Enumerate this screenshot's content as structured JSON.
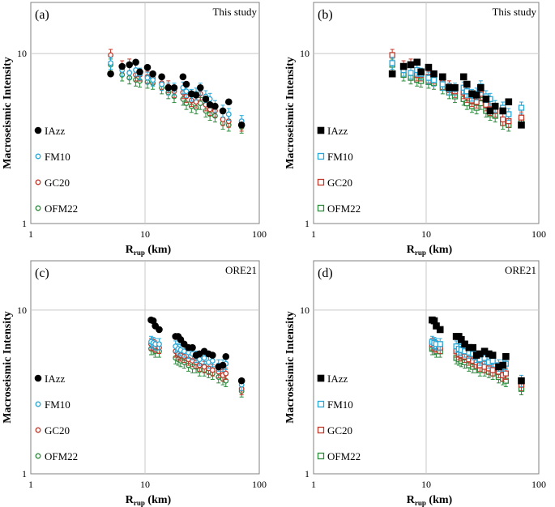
{
  "figure": {
    "description_free": true
  },
  "colors": {
    "IAzz": "#000000",
    "FM10": "#2aa7d6",
    "GC20": "#c0392b",
    "OFM22": "#2e8b3e",
    "grid": "#c8c8c8",
    "axis": "#808080"
  },
  "chart_data": [
    {
      "panel_label": "(a)",
      "source_label": "This study",
      "type": "scatter",
      "marker": "circle",
      "xlabel_main": "R",
      "xlabel_sub": "rup",
      "xlabel_unit": " (km)",
      "ylabel": "Macroseismic Intensity",
      "xscale": "log",
      "yscale": "log",
      "xlim": [
        1,
        100
      ],
      "ylim": [
        1,
        20
      ],
      "xticks": [
        1,
        10,
        100
      ],
      "xtick_labels": [
        "1",
        "10",
        "100"
      ],
      "yticks": [
        1,
        10
      ],
      "ytick_labels": [
        "1",
        "10"
      ],
      "legend": [
        "IAzz",
        "FM10",
        "GC20",
        "OFM22"
      ],
      "x": [
        5.0,
        6.3,
        7.3,
        8.3,
        9.0,
        10.5,
        11.7,
        14.0,
        16.0,
        18.0,
        21.5,
        23.0,
        25.5,
        28.0,
        30.5,
        34.0,
        37.0,
        41.0,
        48.0,
        54.0,
        70.0
      ],
      "series": [
        {
          "name": "IAzz",
          "values": [
            7.6,
            8.4,
            8.6,
            8.9,
            7.8,
            8.3,
            7.6,
            7.3,
            6.3,
            6.3,
            7.3,
            6.6,
            5.8,
            5.7,
            6.3,
            5.4,
            5.0,
            4.9,
            4.6,
            5.2,
            3.8
          ]
        },
        {
          "name": "FM10",
          "values": [
            8.8,
            8.0,
            7.7,
            8.0,
            7.6,
            7.2,
            7.0,
            6.6,
            6.2,
            6.2,
            6.3,
            6.0,
            5.7,
            5.8,
            6.2,
            5.6,
            5.4,
            4.9,
            4.6,
            4.4,
            4.0
          ]
        },
        {
          "name": "GC20",
          "values": [
            9.8,
            8.4,
            8.6,
            7.5,
            7.5,
            7.3,
            7.2,
            6.7,
            6.4,
            6.0,
            5.9,
            5.6,
            5.3,
            5.2,
            5.8,
            5.0,
            4.7,
            4.6,
            4.1,
            4.0,
            3.8
          ]
        },
        {
          "name": "OFM22",
          "values": [
            8.6,
            7.5,
            7.2,
            7.0,
            6.9,
            6.8,
            6.7,
            6.3,
            5.9,
            5.6,
            5.4,
            5.1,
            4.9,
            4.8,
            5.1,
            4.6,
            4.4,
            4.3,
            3.9,
            3.8,
            3.7
          ]
        }
      ]
    },
    {
      "panel_label": "(b)",
      "source_label": "This study",
      "type": "scatter",
      "marker": "square",
      "xlabel_main": "R",
      "xlabel_sub": "rup",
      "xlabel_unit": " (km)",
      "ylabel": "Macroseismic Intensity",
      "xscale": "log",
      "yscale": "log",
      "xlim": [
        1,
        100
      ],
      "ylim": [
        1,
        20
      ],
      "xticks": [
        1,
        10,
        100
      ],
      "xtick_labels": [
        "1",
        "10",
        "100"
      ],
      "yticks": [
        1,
        10
      ],
      "ytick_labels": [
        "1",
        "10"
      ],
      "legend": [
        "IAzz",
        "FM10",
        "GC20",
        "OFM22"
      ],
      "x": [
        5.0,
        6.3,
        7.3,
        8.3,
        9.0,
        10.5,
        11.7,
        14.0,
        16.0,
        18.0,
        21.5,
        23.0,
        25.5,
        28.0,
        30.5,
        34.0,
        37.0,
        41.0,
        48.0,
        54.0,
        70.0
      ],
      "series": [
        {
          "name": "IAzz",
          "values": [
            7.6,
            8.4,
            8.6,
            8.9,
            7.8,
            8.3,
            7.6,
            7.3,
            6.3,
            6.3,
            7.3,
            6.6,
            5.8,
            5.7,
            6.3,
            5.4,
            4.6,
            4.9,
            4.6,
            5.2,
            3.8
          ]
        },
        {
          "name": "FM10",
          "values": [
            8.8,
            8.0,
            7.7,
            8.0,
            7.6,
            7.2,
            7.0,
            6.6,
            6.2,
            6.2,
            6.3,
            6.0,
            5.7,
            5.8,
            6.4,
            5.6,
            5.4,
            4.9,
            4.8,
            4.4,
            4.8
          ]
        },
        {
          "name": "GC20",
          "values": [
            9.8,
            8.4,
            8.6,
            7.5,
            7.5,
            7.3,
            7.2,
            6.7,
            6.4,
            6.0,
            5.9,
            5.6,
            5.3,
            5.2,
            5.8,
            5.0,
            4.7,
            4.6,
            4.1,
            4.0,
            4.2
          ]
        },
        {
          "name": "OFM22",
          "values": [
            8.6,
            7.5,
            7.2,
            7.0,
            6.9,
            6.8,
            6.7,
            6.3,
            5.9,
            5.6,
            5.4,
            5.1,
            4.9,
            4.8,
            5.1,
            4.6,
            4.4,
            4.3,
            3.9,
            3.8,
            4.0
          ]
        }
      ]
    },
    {
      "panel_label": "(c)",
      "source_label": "ORE21",
      "type": "scatter",
      "marker": "circle",
      "xlabel_main": "R",
      "xlabel_sub": "rup",
      "xlabel_unit": " (km)",
      "ylabel": "Macroseismic Intensity",
      "xscale": "log",
      "yscale": "log",
      "xlim": [
        1,
        100
      ],
      "ylim": [
        1,
        20
      ],
      "xticks": [
        1,
        10,
        100
      ],
      "xtick_labels": [
        "1",
        "10",
        "100"
      ],
      "yticks": [
        1,
        10
      ],
      "ytick_labels": [
        "1",
        "10"
      ],
      "legend": [
        "IAzz",
        "FM10",
        "GC20",
        "OFM22"
      ],
      "x": [
        11.3,
        11.8,
        12.3,
        13.3,
        18.5,
        19.5,
        20.5,
        22.0,
        24.0,
        26.0,
        28.0,
        30.0,
        33.0,
        36.0,
        39.0,
        44.0,
        48.0,
        51.0,
        70.0
      ],
      "series": [
        {
          "name": "IAzz",
          "values": [
            8.7,
            8.6,
            8.0,
            7.6,
            6.9,
            6.9,
            6.6,
            6.2,
            5.9,
            5.9,
            5.3,
            5.4,
            5.6,
            5.4,
            5.3,
            4.5,
            4.6,
            5.2,
            3.7
          ]
        },
        {
          "name": "FM10",
          "values": [
            6.4,
            6.3,
            6.2,
            6.2,
            6.0,
            5.8,
            5.7,
            5.6,
            5.5,
            5.4,
            5.2,
            5.0,
            5.1,
            4.8,
            4.9,
            4.6,
            4.6,
            4.7,
            3.5
          ]
        },
        {
          "name": "GC20",
          "values": [
            6.2,
            6.1,
            6.0,
            5.9,
            5.6,
            5.4,
            5.3,
            5.2,
            5.0,
            4.9,
            4.8,
            4.6,
            4.5,
            4.4,
            4.3,
            4.2,
            4.0,
            4.1,
            3.3
          ]
        },
        {
          "name": "OFM22",
          "values": [
            5.8,
            5.8,
            5.6,
            5.6,
            5.1,
            5.0,
            4.9,
            4.8,
            4.6,
            4.5,
            4.5,
            4.3,
            4.3,
            4.2,
            4.1,
            3.9,
            3.8,
            3.7,
            3.2
          ]
        }
      ]
    },
    {
      "panel_label": "(d)",
      "source_label": "ORE21",
      "type": "scatter",
      "marker": "square",
      "xlabel_main": "R",
      "xlabel_sub": "rup",
      "xlabel_unit": " (km)",
      "ylabel": "Macroseismic Intensity",
      "xscale": "log",
      "yscale": "log",
      "xlim": [
        1,
        100
      ],
      "ylim": [
        1,
        20
      ],
      "xticks": [
        1,
        10,
        100
      ],
      "xtick_labels": [
        "1",
        "10",
        "100"
      ],
      "yticks": [
        1,
        10
      ],
      "ytick_labels": [
        "1",
        "10"
      ],
      "legend": [
        "IAzz",
        "FM10",
        "GC20",
        "OFM22"
      ],
      "x": [
        11.3,
        11.8,
        12.3,
        13.3,
        18.5,
        19.5,
        20.5,
        22.0,
        24.0,
        26.0,
        28.0,
        30.0,
        33.0,
        36.0,
        39.0,
        44.0,
        48.0,
        51.0,
        70.0
      ],
      "series": [
        {
          "name": "IAzz",
          "values": [
            8.7,
            8.6,
            8.0,
            7.6,
            6.9,
            6.9,
            6.6,
            6.2,
            5.9,
            5.9,
            5.3,
            5.4,
            5.6,
            5.4,
            5.3,
            4.5,
            4.6,
            5.2,
            3.7
          ]
        },
        {
          "name": "FM10",
          "values": [
            6.4,
            6.3,
            6.2,
            6.2,
            6.0,
            5.8,
            5.7,
            5.6,
            5.5,
            5.4,
            5.2,
            5.0,
            5.1,
            4.8,
            4.9,
            4.6,
            4.6,
            4.7,
            3.7
          ]
        },
        {
          "name": "GC20",
          "values": [
            6.2,
            6.1,
            6.0,
            5.9,
            5.6,
            5.4,
            5.3,
            5.2,
            5.0,
            4.9,
            4.8,
            4.6,
            4.5,
            4.4,
            4.3,
            4.2,
            4.0,
            4.1,
            3.5
          ]
        },
        {
          "name": "OFM22",
          "values": [
            5.8,
            5.8,
            5.6,
            5.6,
            5.1,
            5.0,
            4.9,
            4.8,
            4.6,
            4.5,
            4.5,
            4.3,
            4.3,
            4.2,
            4.1,
            3.9,
            3.8,
            3.7,
            3.3
          ]
        }
      ]
    }
  ]
}
